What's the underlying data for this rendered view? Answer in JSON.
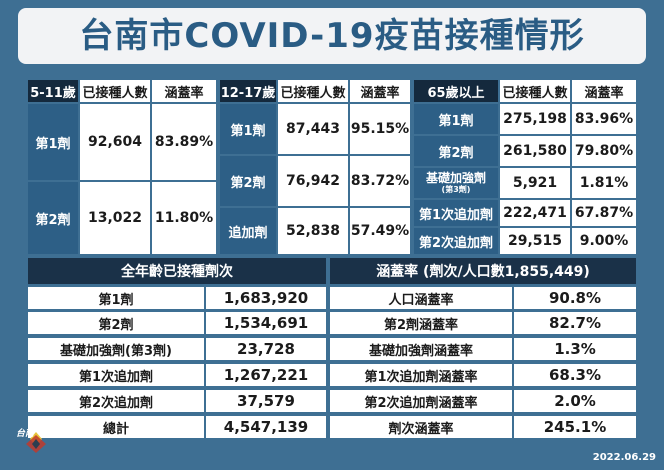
{
  "title": "台南市COVID-19疫苗接種情形",
  "table_5_11": {
    "headers": [
      "5-11歲",
      "已接種人數",
      "涵蓋率"
    ],
    "rows": [
      {
        "label": "第1劑",
        "count": "92,604",
        "rate": "83.89%"
      },
      {
        "label": "第2劑",
        "count": "13,022",
        "rate": "11.80%"
      }
    ]
  },
  "table_12_17": {
    "headers": [
      "12-17歲",
      "已接種人數",
      "涵蓋率"
    ],
    "rows": [
      {
        "label": "第1劑",
        "count": "87,443",
        "rate": "95.15%"
      },
      {
        "label": "第2劑",
        "count": "76,942",
        "rate": "83.72%"
      },
      {
        "label": "追加劑",
        "count": "52,838",
        "rate": "57.49%"
      }
    ]
  },
  "table_65": {
    "headers": [
      "65歲以上",
      "已接種人數",
      "涵蓋率"
    ],
    "rows": [
      {
        "label": "第1劑",
        "count": "275,198",
        "rate": "83.96%"
      },
      {
        "label": "第2劑",
        "count": "261,580",
        "rate": "79.80%"
      },
      {
        "label": "基礎加強劑",
        "sub": "(第3劑)",
        "count": "5,921",
        "rate": "1.81%"
      },
      {
        "label": "第1次追加劑",
        "count": "222,471",
        "rate": "67.87%"
      },
      {
        "label": "第2次追加劑",
        "count": "29,515",
        "rate": "9.00%"
      }
    ]
  },
  "all_ages": {
    "header": "全年齡已接種劑次",
    "rows": [
      {
        "label": "第1劑",
        "value": "1,683,920"
      },
      {
        "label": "第2劑",
        "value": "1,534,691"
      },
      {
        "label": "基礎加強劑(第3劑)",
        "value": "23,728"
      },
      {
        "label": "第1次追加劑",
        "value": "1,267,221"
      },
      {
        "label": "第2次追加劑",
        "value": "37,579"
      },
      {
        "label": "總計",
        "value": "4,547,139"
      }
    ]
  },
  "coverage": {
    "header": "涵蓋率 (劑次/人口數1,855,449)",
    "rows": [
      {
        "label": "人口涵蓋率",
        "value": "90.8%"
      },
      {
        "label": "第2劑涵蓋率",
        "value": "82.7%"
      },
      {
        "label": "基礎加強劑涵蓋率",
        "value": "1.3%"
      },
      {
        "label": "第1次追加劑涵蓋率",
        "value": "68.3%"
      },
      {
        "label": "第2次追加劑涵蓋率",
        "value": "2.0%"
      },
      {
        "label": "劑次涵蓋率",
        "value": "245.1%"
      }
    ]
  },
  "logo": {
    "text": "台南",
    "icon": "city-emblem-icon",
    "colors": [
      "#e8c33a",
      "#c0392b",
      "#2c3e50"
    ]
  },
  "date": "2022.06.29"
}
